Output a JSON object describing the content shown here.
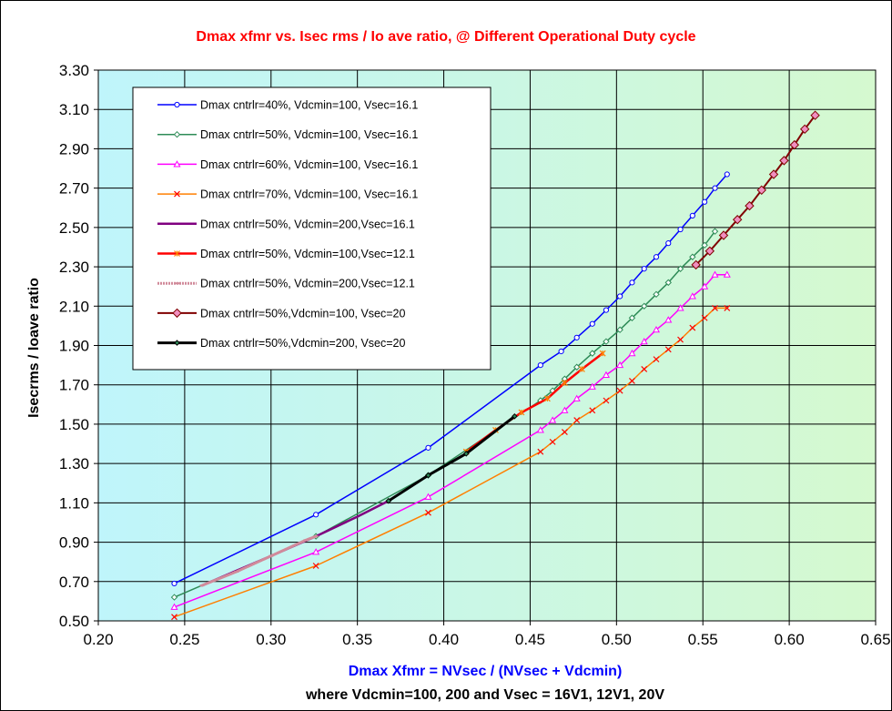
{
  "chart_data": {
    "type": "line",
    "title": "Dmax xfmr vs. Isec rms / Io ave ratio, @ Different Operational Duty cycle",
    "xlabel": "Dmax Xfmr = NVsec / (NVsec + Vdcmin)",
    "xlabel2": "where Vdcmin=100, 200  and Vsec = 16V1, 12V1, 20V",
    "ylabel": "Isecrms / Ioave ratio",
    "xlim": [
      0.2,
      0.65
    ],
    "ylim": [
      0.5,
      3.3
    ],
    "x_ticks": [
      "0.20",
      "0.25",
      "0.30",
      "0.35",
      "0.40",
      "0.45",
      "0.50",
      "0.55",
      "0.60",
      "0.65"
    ],
    "y_ticks": [
      "0.50",
      "0.70",
      "0.90",
      "1.10",
      "1.30",
      "1.50",
      "1.70",
      "1.90",
      "2.10",
      "2.30",
      "2.50",
      "2.70",
      "2.90",
      "3.10",
      "3.30"
    ],
    "grid": true,
    "legend_position": "top-left",
    "colors": {
      "title": "#ff0000",
      "xlabel": "#0000ff",
      "xlabel2": "#000000",
      "ylabel": "#000000",
      "grid": "#000000",
      "plot_gradient_left": "#bff5fb",
      "plot_gradient_right": "#d5f9cf"
    },
    "series": [
      {
        "name": "Dmax cntrlr=40%, Vdcmin=100, Vsec=16.1",
        "color": "#0000ff",
        "marker": "circle",
        "marker_fill": "#ffffff",
        "width": 1.5,
        "x": [
          0.244,
          0.326,
          0.391,
          0.456,
          0.468,
          0.477,
          0.486,
          0.494,
          0.502,
          0.509,
          0.516,
          0.523,
          0.53,
          0.537,
          0.544,
          0.551,
          0.557,
          0.564
        ],
        "y": [
          0.69,
          1.04,
          1.38,
          1.8,
          1.87,
          1.94,
          2.01,
          2.08,
          2.15,
          2.22,
          2.29,
          2.35,
          2.42,
          2.49,
          2.56,
          2.63,
          2.7,
          2.77
        ]
      },
      {
        "name": "Dmax cntrlr=50%, Vdcmin=100, Vsec=16.1",
        "color": "#2e8b57",
        "marker": "diamond",
        "marker_fill": "#ffffff",
        "width": 1.5,
        "x": [
          0.244,
          0.326,
          0.391,
          0.456,
          0.463,
          0.47,
          0.477,
          0.486,
          0.494,
          0.502,
          0.509,
          0.516,
          0.523,
          0.53,
          0.537,
          0.544,
          0.551,
          0.557
        ],
        "y": [
          0.62,
          0.93,
          1.24,
          1.62,
          1.67,
          1.73,
          1.79,
          1.86,
          1.92,
          1.98,
          2.04,
          2.1,
          2.16,
          2.22,
          2.29,
          2.35,
          2.41,
          2.48
        ]
      },
      {
        "name": "Dmax cntrlr=60%, Vdcmin=100, Vsec=16.1",
        "color": "#ff00ff",
        "marker": "triangle",
        "marker_fill": "#ffffff",
        "width": 1.5,
        "x": [
          0.244,
          0.326,
          0.391,
          0.456,
          0.463,
          0.47,
          0.477,
          0.486,
          0.494,
          0.502,
          0.509,
          0.516,
          0.523,
          0.53,
          0.537,
          0.544,
          0.551,
          0.557,
          0.564
        ],
        "y": [
          0.57,
          0.85,
          1.13,
          1.47,
          1.52,
          1.57,
          1.63,
          1.69,
          1.75,
          1.8,
          1.86,
          1.92,
          1.98,
          2.03,
          2.09,
          2.15,
          2.2,
          2.26,
          2.26
        ]
      },
      {
        "name": "Dmax cntrlr=70%, Vdcmin=100, Vsec=16.1",
        "color": "#ff7f00",
        "marker": "x",
        "marker_fill": "#ff0000",
        "width": 1.5,
        "x": [
          0.244,
          0.326,
          0.391,
          0.456,
          0.463,
          0.47,
          0.477,
          0.486,
          0.494,
          0.502,
          0.509,
          0.516,
          0.523,
          0.53,
          0.537,
          0.544,
          0.551,
          0.557,
          0.564
        ],
        "y": [
          0.52,
          0.78,
          1.05,
          1.36,
          1.41,
          1.46,
          1.52,
          1.57,
          1.62,
          1.67,
          1.72,
          1.78,
          1.83,
          1.88,
          1.93,
          1.99,
          2.04,
          2.09,
          2.09
        ]
      },
      {
        "name": "Dmax cntrlr=50%, Vdcmin=200,Vsec=16.1",
        "color": "#800080",
        "marker": "none",
        "marker_fill": "#800080",
        "width": 2.5,
        "x": [
          0.26,
          0.3,
          0.326,
          0.35,
          0.368
        ],
        "y": [
          0.68,
          0.83,
          0.93,
          1.03,
          1.11
        ]
      },
      {
        "name": "Dmax cntrlr=50%, Vdcmin=100,Vsec=12.1",
        "color": "#ff0000",
        "marker": "asterisk",
        "marker_fill": "#ff7f00",
        "width": 2.5,
        "x": [
          0.413,
          0.43,
          0.445,
          0.46,
          0.47,
          0.48,
          0.492
        ],
        "y": [
          1.36,
          1.47,
          1.56,
          1.63,
          1.71,
          1.78,
          1.86
        ]
      },
      {
        "name": "Dmax cntrlr=50%, Vdcmin=200,Vsec=12.1",
        "color": "#d18a9a",
        "marker": "dash",
        "marker_fill": "#d18a9a",
        "width": 3,
        "x": [
          0.26,
          0.28,
          0.3,
          0.32,
          0.326
        ],
        "y": [
          0.68,
          0.75,
          0.83,
          0.91,
          0.93
        ]
      },
      {
        "name": "Dmax cntrlr=50%,Vdcmin=100, Vsec=20",
        "color": "#800000",
        "marker": "diamond",
        "marker_fill": "#f08fc0",
        "width": 2,
        "x": [
          0.546,
          0.554,
          0.562,
          0.57,
          0.577,
          0.584,
          0.591,
          0.597,
          0.603,
          0.609,
          0.615
        ],
        "y": [
          2.31,
          2.38,
          2.46,
          2.54,
          2.61,
          2.69,
          2.77,
          2.84,
          2.92,
          3.0,
          3.07
        ]
      },
      {
        "name": "Dmax cntrlr=50%,Vdcmin=200, Vsec=20",
        "color": "#000000",
        "marker": "diamond-small",
        "marker_fill": "#2e8b57",
        "width": 3,
        "x": [
          0.368,
          0.391,
          0.413,
          0.441
        ],
        "y": [
          1.11,
          1.24,
          1.35,
          1.54
        ]
      }
    ]
  }
}
